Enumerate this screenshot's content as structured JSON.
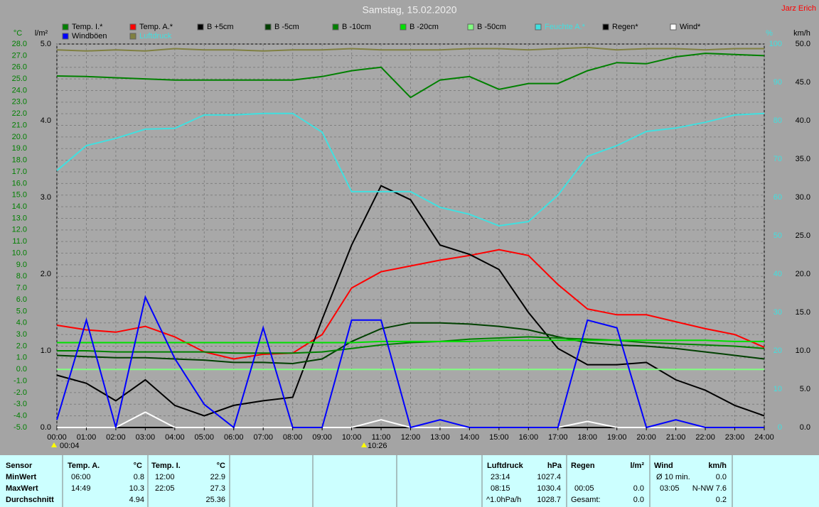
{
  "chart_data": {
    "type": "line",
    "title": "Samstag, 15.02.2020",
    "author": "Jarz Erich",
    "axis_labels": {
      "y": "°C",
      "y4": "l/m²",
      "y2": "%",
      "y3": "km/h"
    },
    "annotations": [
      "00:04",
      "10:26"
    ],
    "x": [
      0,
      1,
      2,
      3,
      4,
      5,
      6,
      7,
      8,
      9,
      10,
      11,
      12,
      13,
      14,
      15,
      16,
      17,
      18,
      19,
      20,
      21,
      22,
      23,
      24
    ],
    "xlim": [
      0,
      24
    ],
    "xticks": [
      {
        "value": 0,
        "label": "00:00"
      },
      {
        "value": 1,
        "label": "01:00"
      },
      {
        "value": 2,
        "label": "02:00"
      },
      {
        "value": 3,
        "label": "03:00"
      },
      {
        "value": 4,
        "label": "04:00"
      },
      {
        "value": 5,
        "label": "05:00"
      },
      {
        "value": 6,
        "label": "06:00"
      },
      {
        "value": 7,
        "label": "07:00"
      },
      {
        "value": 8,
        "label": "08:00"
      },
      {
        "value": 9,
        "label": "09:00"
      },
      {
        "value": 10,
        "label": "10:00"
      },
      {
        "value": 11,
        "label": "11:00"
      },
      {
        "value": 12,
        "label": "12:00"
      },
      {
        "value": 13,
        "label": "13:00"
      },
      {
        "value": 14,
        "label": "14:00"
      },
      {
        "value": 15,
        "label": "15:00"
      },
      {
        "value": 16,
        "label": "16:00"
      },
      {
        "value": 17,
        "label": "17:00"
      },
      {
        "value": 18,
        "label": "18:00"
      },
      {
        "value": 19,
        "label": "19:00"
      },
      {
        "value": 20,
        "label": "20:00"
      },
      {
        "value": 21,
        "label": "21:00"
      },
      {
        "value": 22,
        "label": "22:00"
      },
      {
        "value": 23,
        "label": "23:00"
      },
      {
        "value": 24,
        "label": "24:00"
      }
    ],
    "ylim": [
      -5,
      28
    ],
    "yticks": [
      {
        "value": 28,
        "label": "28.0"
      },
      {
        "value": 27,
        "label": "27.0"
      },
      {
        "value": 26,
        "label": "26.0"
      },
      {
        "value": 25,
        "label": "25.0"
      },
      {
        "value": 24,
        "label": "24.0"
      },
      {
        "value": 23,
        "label": "23.0"
      },
      {
        "value": 22,
        "label": "22.0"
      },
      {
        "value": 21,
        "label": "21.0"
      },
      {
        "value": 20,
        "label": "20.0"
      },
      {
        "value": 19,
        "label": "19.0"
      },
      {
        "value": 18,
        "label": "18.0"
      },
      {
        "value": 17,
        "label": "17.0"
      },
      {
        "value": 16,
        "label": "16.0"
      },
      {
        "value": 15,
        "label": "15.0"
      },
      {
        "value": 14,
        "label": "14.0"
      },
      {
        "value": 13,
        "label": "13.0"
      },
      {
        "value": 12,
        "label": "12.0"
      },
      {
        "value": 11,
        "label": "11.0"
      },
      {
        "value": 10,
        "label": "10.0"
      },
      {
        "value": 9,
        "label": "9.0"
      },
      {
        "value": 8,
        "label": "8.0"
      },
      {
        "value": 7,
        "label": "7.0"
      },
      {
        "value": 6,
        "label": "6.0"
      },
      {
        "value": 5,
        "label": "5.0"
      },
      {
        "value": 4,
        "label": "4.0"
      },
      {
        "value": 3,
        "label": "3.0"
      },
      {
        "value": 2,
        "label": "2.0"
      },
      {
        "value": 1,
        "label": "1.0"
      },
      {
        "value": 0,
        "label": "0.0"
      },
      {
        "value": -1,
        "label": "-1.0"
      },
      {
        "value": -2,
        "label": "-2.0"
      },
      {
        "value": -3,
        "label": "-3.0"
      },
      {
        "value": -4,
        "label": "-4.0"
      },
      {
        "value": -5,
        "label": "-5.0"
      }
    ],
    "y4lim": [
      0,
      5
    ],
    "y4ticks": [
      {
        "value": 5,
        "label": "5.0"
      },
      {
        "value": 4,
        "label": "4.0"
      },
      {
        "value": 3,
        "label": "3.0"
      },
      {
        "value": 2,
        "label": "2.0"
      },
      {
        "value": 1,
        "label": "1.0"
      },
      {
        "value": 0,
        "label": "0.0"
      }
    ],
    "y2lim": [
      0,
      100
    ],
    "y2ticks": [
      100,
      90,
      80,
      70,
      60,
      50,
      40,
      30,
      20,
      10,
      0
    ],
    "y3lim": [
      0,
      50
    ],
    "y3ticks": [
      {
        "value": 50,
        "label": "50.0"
      },
      {
        "value": 45,
        "label": "45.0"
      },
      {
        "value": 40,
        "label": "40.0"
      },
      {
        "value": 35,
        "label": "35.0"
      },
      {
        "value": 30,
        "label": "30.0"
      },
      {
        "value": 25,
        "label": "25.0"
      },
      {
        "value": 20,
        "label": "20.0"
      },
      {
        "value": 15,
        "label": "15.0"
      },
      {
        "value": 10,
        "label": "10.0"
      },
      {
        "value": 5,
        "label": "5.0"
      },
      {
        "value": 0,
        "label": "0.0"
      }
    ],
    "grid": true,
    "series": [
      {
        "name": "Temp. I.*",
        "color": "#008000",
        "axis": "y",
        "values": [
          25.25,
          25.2,
          25.1,
          25.0,
          24.9,
          24.9,
          24.9,
          24.9,
          24.9,
          25.2,
          25.7,
          26.0,
          23.4,
          24.9,
          25.2,
          24.1,
          24.6,
          24.6,
          25.7,
          26.4,
          26.3,
          26.9,
          27.2,
          27.1,
          27.0
        ]
      },
      {
        "name": "Temp. A.*",
        "color": "#ff0000",
        "axis": "y",
        "values": [
          3.8,
          3.4,
          3.2,
          3.7,
          2.8,
          1.5,
          0.9,
          1.3,
          1.4,
          3.0,
          7.0,
          8.4,
          8.9,
          9.4,
          9.8,
          10.3,
          9.8,
          7.3,
          5.2,
          4.7,
          4.7,
          4.1,
          3.5,
          3.0,
          1.9
        ]
      },
      {
        "name": "B +5cm",
        "color": "#000000",
        "axis": "y",
        "values": [
          -0.5,
          -1.2,
          -2.7,
          -0.9,
          -3.1,
          -4.0,
          -3.1,
          -2.7,
          -2.4,
          4.3,
          10.7,
          15.8,
          14.6,
          10.7,
          9.9,
          8.6,
          4.9,
          1.8,
          0.4,
          0.4,
          0.6,
          -0.9,
          -1.8,
          -3.1,
          -4.0
        ]
      },
      {
        "name": "B -5cm",
        "color": "#004000",
        "axis": "y",
        "values": [
          1.2,
          1.1,
          1.0,
          1.0,
          0.9,
          0.8,
          0.6,
          0.6,
          0.5,
          0.9,
          2.4,
          3.5,
          4.0,
          4.0,
          3.9,
          3.7,
          3.4,
          2.8,
          2.3,
          2.1,
          2.0,
          1.8,
          1.5,
          1.2,
          0.9
        ]
      },
      {
        "name": "B -10cm",
        "color": "#008000",
        "axis": "y",
        "values": [
          1.6,
          1.6,
          1.5,
          1.5,
          1.5,
          1.5,
          1.4,
          1.4,
          1.4,
          1.5,
          1.8,
          2.1,
          2.3,
          2.4,
          2.6,
          2.7,
          2.8,
          2.7,
          2.6,
          2.5,
          2.3,
          2.2,
          2.1,
          2.0,
          1.8
        ]
      },
      {
        "name": "B -20cm",
        "color": "#00e000",
        "axis": "y",
        "values": [
          2.3,
          2.3,
          2.3,
          2.3,
          2.3,
          2.3,
          2.3,
          2.3,
          2.3,
          2.3,
          2.3,
          2.4,
          2.4,
          2.4,
          2.4,
          2.5,
          2.5,
          2.5,
          2.5,
          2.5,
          2.5,
          2.5,
          2.5,
          2.4,
          2.4
        ]
      },
      {
        "name": "B -50cm",
        "color": "#80ff80",
        "axis": "y",
        "values": [
          0,
          0,
          0,
          0,
          0,
          0,
          0,
          0,
          0,
          0,
          0,
          0,
          0,
          0,
          0,
          0,
          0,
          0,
          0,
          0,
          0,
          0,
          0,
          0,
          0
        ]
      },
      {
        "name": "Feuchte A.*",
        "color": "#40e0e0",
        "axis": "y2",
        "values": [
          67,
          73.5,
          75.4,
          77.8,
          78,
          81.5,
          81.5,
          81.9,
          81.9,
          77,
          61.5,
          61.5,
          61.5,
          57.4,
          55.6,
          52.6,
          53.7,
          60.6,
          70.7,
          73.5,
          77.2,
          78.1,
          79.6,
          81.5,
          81.9
        ]
      },
      {
        "name": "Regen*",
        "color": "#000000",
        "axis": "y4",
        "values": [
          0,
          0,
          0,
          0,
          0,
          0,
          0,
          0,
          0,
          0,
          0,
          0,
          0,
          0,
          0,
          0,
          0,
          0,
          0,
          0,
          0,
          0,
          0,
          0,
          0
        ]
      },
      {
        "name": "Wind*",
        "color": "#ffffff",
        "axis": "y3",
        "values": [
          0,
          0,
          0,
          2,
          0,
          0,
          0,
          0,
          0,
          0,
          0,
          1,
          0,
          0,
          0,
          0,
          0,
          0,
          0.8,
          0,
          0,
          0,
          0,
          0,
          0
        ]
      },
      {
        "name": "Windböen",
        "color": "#0000ff",
        "axis": "y3",
        "values": [
          1,
          14,
          0,
          17,
          9,
          3,
          0,
          13,
          0,
          0,
          14,
          14,
          0,
          1,
          0,
          0,
          0,
          0,
          14,
          13,
          0,
          1,
          0,
          0,
          0
        ]
      },
      {
        "name": "Luftdruck",
        "color": "#808040",
        "axis": "y",
        "values": [
          27.5,
          27.4,
          27.5,
          27.4,
          27.6,
          27.5,
          27.5,
          27.4,
          27.5,
          27.5,
          27.6,
          27.5,
          27.5,
          27.5,
          27.6,
          27.6,
          27.5,
          27.6,
          27.7,
          27.5,
          27.6,
          27.6,
          27.5,
          27.6,
          27.6
        ]
      }
    ]
  },
  "stats": {
    "labels": [
      "Sensor",
      "MinWert",
      "MaxWert",
      "Durchschnitt"
    ],
    "temp_a": {
      "title": "Temp. A.",
      "unit": "°C",
      "min": [
        "06:00",
        "0.8"
      ],
      "max": [
        "14:49",
        "10.3"
      ],
      "avg": "4.94"
    },
    "temp_i": {
      "title": "Temp. I.",
      "unit": "°C",
      "min": [
        "12:00",
        "22.9"
      ],
      "max": [
        "22:05",
        "27.3"
      ],
      "avg": "25.36"
    },
    "luftdruck": {
      "title": "Luftdruck",
      "unit": "hPa",
      "min": [
        "23:14",
        "1027.4"
      ],
      "max": [
        "08:15",
        "1030.4"
      ],
      "avg": [
        "^1.0hPa/h",
        "1028.7"
      ]
    },
    "regen": {
      "title": "Regen",
      "unit": "l/m²",
      "max": [
        "00:05",
        "0.0"
      ],
      "total": [
        "Gesamt:",
        "0.0"
      ]
    },
    "wind": {
      "title": "Wind",
      "unit": "km/h",
      "avg10": [
        "Ø 10 min.",
        "0.0"
      ],
      "max": [
        "03:05",
        "N-NW 7.6"
      ],
      "avg": "0.2"
    }
  }
}
